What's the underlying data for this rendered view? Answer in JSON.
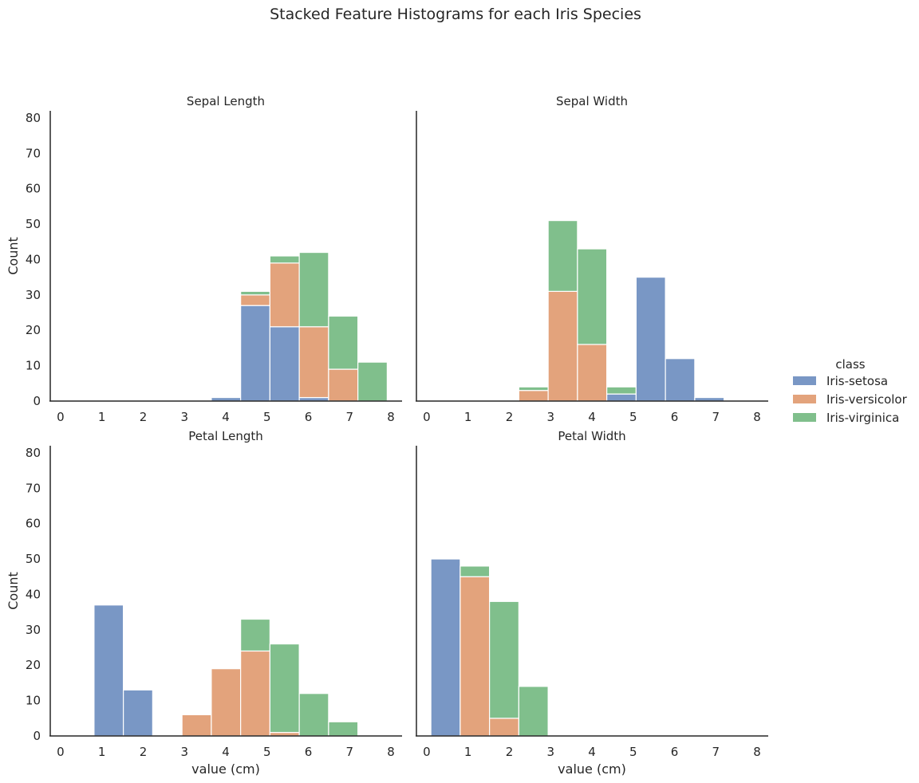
{
  "chart_data": {
    "type": "bar",
    "title": "Stacked Feature Histograms for each Iris Species",
    "xlabel": "value (cm)",
    "ylabel": "Count",
    "xlim": [
      -0.25,
      8.25
    ],
    "ylim": [
      0,
      82
    ],
    "xticks": [
      0,
      1,
      2,
      3,
      4,
      5,
      6,
      7,
      8
    ],
    "yticks": [
      0,
      10,
      20,
      30,
      40,
      50,
      60,
      70,
      80
    ],
    "grid": false,
    "stacked": true,
    "legend": {
      "title": "class",
      "placement": "right",
      "entries": [
        "Iris-setosa",
        "Iris-versicolor",
        "Iris-virginica"
      ]
    },
    "series_colors": {
      "Iris-setosa": "#7997c5",
      "Iris-versicolor": "#e3a37c",
      "Iris-virginica": "#80bf8c"
    },
    "bin_edges": [
      0.1,
      0.81,
      1.52,
      2.23,
      2.94,
      3.65,
      4.36,
      5.07,
      5.78,
      6.49,
      7.2,
      7.91
    ],
    "panels": [
      {
        "title": "Sepal Length",
        "series": [
          {
            "name": "Iris-setosa",
            "values": [
              0,
              0,
              0,
              0,
              0,
              1,
              27,
              21,
              1,
              0,
              0
            ]
          },
          {
            "name": "Iris-versicolor",
            "values": [
              0,
              0,
              0,
              0,
              0,
              0,
              3,
              18,
              20,
              9,
              0
            ]
          },
          {
            "name": "Iris-virginica",
            "values": [
              0,
              0,
              0,
              0,
              0,
              0,
              1,
              2,
              21,
              15,
              11
            ]
          }
        ]
      },
      {
        "title": "Sepal Width",
        "series": [
          {
            "name": "Iris-setosa",
            "values": [
              0,
              0,
              0,
              0,
              0,
              0,
              2,
              35,
              12,
              1,
              0
            ]
          },
          {
            "name": "Iris-versicolor",
            "values": [
              0,
              0,
              0,
              3,
              31,
              16,
              0,
              0,
              0,
              0,
              0
            ]
          },
          {
            "name": "Iris-virginica",
            "values": [
              0,
              0,
              0,
              1,
              20,
              27,
              2,
              0,
              0,
              0,
              0
            ]
          }
        ]
      },
      {
        "title": "Petal Length",
        "series": [
          {
            "name": "Iris-setosa",
            "values": [
              0,
              37,
              13,
              0,
              0,
              0,
              0,
              0,
              0,
              0,
              0
            ]
          },
          {
            "name": "Iris-versicolor",
            "values": [
              0,
              0,
              0,
              0,
              6,
              19,
              24,
              1,
              0,
              0,
              0
            ]
          },
          {
            "name": "Iris-virginica",
            "values": [
              0,
              0,
              0,
              0,
              0,
              0,
              9,
              25,
              12,
              4,
              0
            ]
          }
        ]
      },
      {
        "title": "Petal Width",
        "series": [
          {
            "name": "Iris-setosa",
            "values": [
              50,
              0,
              0,
              0,
              0,
              0,
              0,
              0,
              0,
              0,
              0
            ]
          },
          {
            "name": "Iris-versicolor",
            "values": [
              0,
              45,
              5,
              0,
              0,
              0,
              0,
              0,
              0,
              0,
              0
            ]
          },
          {
            "name": "Iris-virginica",
            "values": [
              0,
              3,
              33,
              14,
              0,
              0,
              0,
              0,
              0,
              0,
              0
            ]
          }
        ]
      }
    ]
  }
}
